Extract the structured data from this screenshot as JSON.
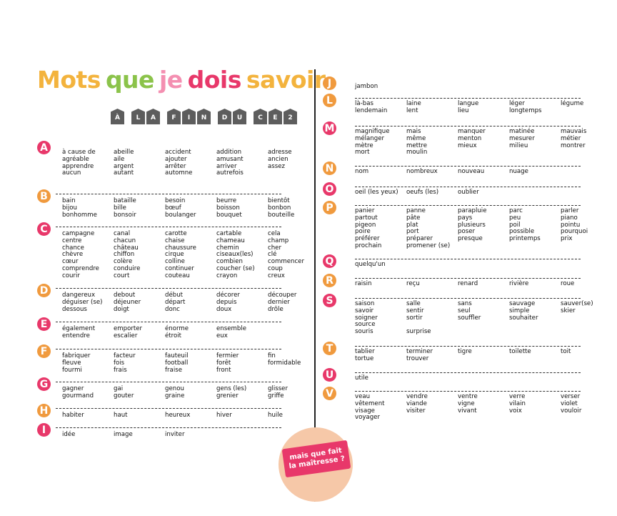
{
  "title": {
    "words": [
      {
        "text": "Mots",
        "color": "#f3b33d"
      },
      {
        "text": "que",
        "color": "#8bc34a"
      },
      {
        "text": "je",
        "color": "#f48fb1"
      },
      {
        "text": "dois",
        "color": "#e8386a"
      },
      {
        "text": "savoir",
        "color": "#f3b33d"
      }
    ],
    "subtitle_tags": [
      "À",
      "LA",
      "FIN",
      "DU",
      "CE2"
    ]
  },
  "letter_colors": {
    "pink": "#e8386a",
    "orange": "#f09a3e"
  },
  "left_sections": [
    {
      "letter": "A",
      "rows": [
        [
          "à cause de",
          "abeille",
          "accident",
          "addition",
          "adresse"
        ],
        [
          "agréable",
          "aile",
          "ajouter",
          "amusant",
          "ancien"
        ],
        [
          "apprendre",
          "argent",
          "arrêter",
          "arriver",
          "assez"
        ],
        [
          "aucun",
          "autant",
          "automne",
          "autrefois",
          ""
        ]
      ]
    },
    {
      "letter": "B",
      "rows": [
        [
          "bain",
          "bataille",
          "besoin",
          "beurre",
          "bientôt"
        ],
        [
          "bijou",
          "bille",
          "bœuf",
          "boisson",
          "bonbon"
        ],
        [
          "bonhomme",
          "bonsoir",
          "boulanger",
          "bouquet",
          "bouteille"
        ]
      ]
    },
    {
      "letter": "C",
      "rows": [
        [
          "campagne",
          "canal",
          "carotte",
          "cartable",
          "cela"
        ],
        [
          "centre",
          "chacun",
          "chaise",
          "chameau",
          "champ"
        ],
        [
          "chance",
          "château",
          "chaussure",
          "chemin",
          "cher"
        ],
        [
          "chèvre",
          "chiffon",
          "cirque",
          "ciseaux(les)",
          "clé"
        ],
        [
          "cœur",
          "colère",
          "colline",
          "combien",
          "commencer"
        ],
        [
          "comprendre",
          "conduire",
          "continuer",
          "coucher (se)",
          "coup"
        ],
        [
          "courir",
          "court",
          "couteau",
          "crayon",
          "creux"
        ]
      ]
    },
    {
      "letter": "D",
      "rows": [
        [
          "dangereux",
          "debout",
          "début",
          "décorer",
          "découper"
        ],
        [
          "déguiser (se)",
          "déjeuner",
          "départ",
          "depuis",
          "dernier"
        ],
        [
          "dessous",
          "doigt",
          "donc",
          "doux",
          "drôle"
        ]
      ]
    },
    {
      "letter": "E",
      "rows": [
        [
          "également",
          "emporter",
          "énorme",
          "ensemble",
          ""
        ],
        [
          "entendre",
          "escalier",
          "étroit",
          "eux",
          ""
        ]
      ]
    },
    {
      "letter": "F",
      "rows": [
        [
          "fabriquer",
          "facteur",
          "fauteuil",
          "fermier",
          "fin"
        ],
        [
          "fleuve",
          "fois",
          "football",
          "forêt",
          "formidable"
        ],
        [
          "fourmi",
          "frais",
          "fraise",
          "front",
          ""
        ]
      ]
    },
    {
      "letter": "G",
      "rows": [
        [
          "gagner",
          "gai",
          "genou",
          "gens (les)",
          "glisser"
        ],
        [
          "gourmand",
          "gouter",
          "graine",
          "grenier",
          "griffe"
        ]
      ]
    },
    {
      "letter": "H",
      "rows": [
        [
          "habiter",
          "haut",
          "heureux",
          "hiver",
          "huile"
        ]
      ]
    },
    {
      "letter": "I",
      "rows": [
        [
          "idée",
          "image",
          "inviter",
          "",
          ""
        ]
      ]
    }
  ],
  "right_sections": [
    {
      "letter": "J",
      "rows": [
        [
          "jambon",
          "",
          "",
          "",
          ""
        ]
      ]
    },
    {
      "letter": "L",
      "rows": [
        [
          "là-bas",
          "laine",
          "langue",
          "léger",
          "légume"
        ],
        [
          "lendemain",
          "lent",
          "lieu",
          "longtemps",
          ""
        ]
      ]
    },
    {
      "letter": "M",
      "rows": [
        [
          "magnifique",
          "mais",
          "manquer",
          "matinée",
          "mauvais"
        ],
        [
          "mélanger",
          "même",
          "menton",
          "mesurer",
          "métier"
        ],
        [
          "mètre",
          "mettre",
          "mieux",
          "milieu",
          "montrer"
        ],
        [
          "mort",
          "moulin",
          "",
          "",
          ""
        ]
      ]
    },
    {
      "letter": "N",
      "rows": [
        [
          "nom",
          "nombreux",
          "nouveau",
          "nuage",
          ""
        ]
      ]
    },
    {
      "letter": "O",
      "rows": [
        [
          "oeil (les yeux)",
          "oeufs (les)",
          "oublier",
          "",
          ""
        ]
      ]
    },
    {
      "letter": "P",
      "rows": [
        [
          "panier",
          "panne",
          "parapluie",
          "parc",
          "parler"
        ],
        [
          "partout",
          "pâte",
          "pays",
          "peu",
          "piano"
        ],
        [
          "pigeon",
          "plat",
          "plusieurs",
          "poil",
          "pointu"
        ],
        [
          "poire",
          "port",
          "poser",
          "possible",
          "pourquoi"
        ],
        [
          "préférer",
          "préparer",
          "presque",
          "printemps",
          "prix"
        ],
        [
          "prochain",
          "promener (se)",
          "",
          "",
          ""
        ]
      ]
    },
    {
      "letter": "Q",
      "rows": [
        [
          "quelqu'un",
          "",
          "",
          "",
          ""
        ]
      ]
    },
    {
      "letter": "R",
      "rows": [
        [
          "raisin",
          "reçu",
          "renard",
          "rivière",
          "roue"
        ]
      ]
    },
    {
      "letter": "S",
      "rows": [
        [
          "saison",
          "salle",
          "sans",
          "sauvage",
          "sauver(se)"
        ],
        [
          "savoir",
          "sentir",
          "seul",
          "simple",
          "skier"
        ],
        [
          "soigner",
          "sortir",
          "souffler",
          "souhaiter",
          ""
        ],
        [
          "source",
          "",
          "",
          "",
          ""
        ],
        [
          "souris",
          "surprise",
          "",
          "",
          ""
        ]
      ]
    },
    {
      "letter": "T",
      "rows": [
        [
          "tablier",
          "terminer",
          "tigre",
          "toilette",
          "toit"
        ],
        [
          "tortue",
          "trouver",
          "",
          "",
          ""
        ]
      ]
    },
    {
      "letter": "U",
      "rows": [
        [
          "utile",
          "",
          "",
          "",
          ""
        ]
      ]
    },
    {
      "letter": "V",
      "rows": [
        [
          "veau",
          "vendre",
          "ventre",
          "verre",
          "verser"
        ],
        [
          "vêtement",
          "viande",
          "vigne",
          "vilain",
          "violet"
        ],
        [
          "visage",
          "visiter",
          "vivant",
          "voix",
          "vouloir"
        ],
        [
          "voyager",
          "",
          "",
          "",
          ""
        ]
      ]
    }
  ],
  "stamp": {
    "line1": "mais que fait",
    "line2": "la maîtresse ?"
  }
}
